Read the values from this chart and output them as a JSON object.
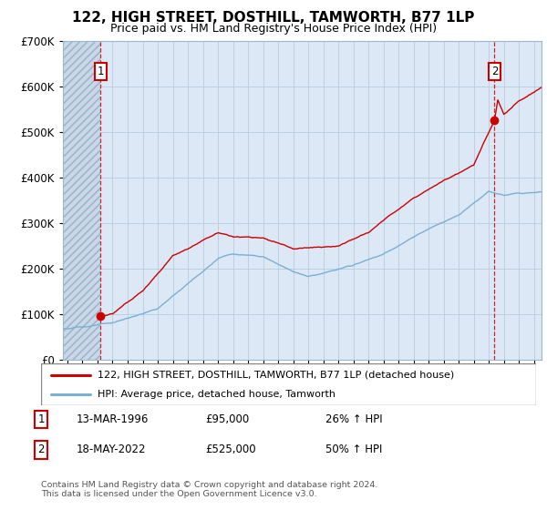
{
  "title": "122, HIGH STREET, DOSTHILL, TAMWORTH, B77 1LP",
  "subtitle": "Price paid vs. HM Land Registry's House Price Index (HPI)",
  "legend_line1": "122, HIGH STREET, DOSTHILL, TAMWORTH, B77 1LP (detached house)",
  "legend_line2": "HPI: Average price, detached house, Tamworth",
  "transaction1_date": "13-MAR-1996",
  "transaction1_price": 95000,
  "transaction1_hpi": "26% ↑ HPI",
  "transaction2_date": "18-MAY-2022",
  "transaction2_price": 525000,
  "transaction2_hpi": "50% ↑ HPI",
  "footer": "Contains HM Land Registry data © Crown copyright and database right 2024.\nThis data is licensed under the Open Government Licence v3.0.",
  "red_color": "#cc0000",
  "blue_color": "#7bafd4",
  "hatch_color": "#c8d8e8",
  "plot_bg": "#dce8f5",
  "grid_color": "#b8ccdc",
  "ylim": [
    0,
    700000
  ],
  "xlim_start": 1993.7,
  "xlim_end": 2025.5,
  "marker1_x": 1996.2,
  "marker1_y": 95000,
  "marker2_x": 2022.38,
  "marker2_y": 525000
}
